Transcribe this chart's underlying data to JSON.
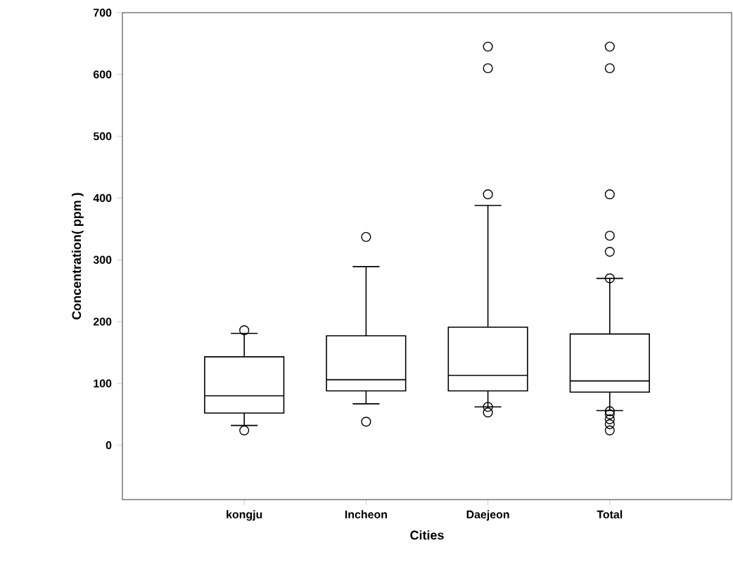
{
  "chart_data": {
    "type": "box",
    "xlabel": "Cities",
    "ylabel": "Concentration( ppm )",
    "categories": [
      "kongju",
      "Incheon",
      "Daejeon",
      "Total"
    ],
    "boxes": [
      {
        "low": 32,
        "q1": 52,
        "median": 80,
        "q3": 143,
        "high": 181,
        "outliers": [
          186,
          24
        ]
      },
      {
        "low": 67,
        "q1": 88,
        "median": 106,
        "q3": 177,
        "high": 289,
        "outliers": [
          337,
          38
        ]
      },
      {
        "low": 62,
        "q1": 88,
        "median": 113,
        "q3": 191,
        "high": 388,
        "outliers": [
          645,
          610,
          406,
          62,
          53
        ]
      },
      {
        "low": 56,
        "q1": 86,
        "median": 104,
        "q3": 180,
        "high": 270,
        "outliers": [
          645,
          610,
          406,
          339,
          313,
          270,
          55,
          50,
          42,
          34,
          24
        ]
      }
    ],
    "ylim": [
      -88,
      700
    ],
    "yticks": [
      0,
      100,
      200,
      300,
      400,
      500,
      600,
      700
    ],
    "marker": "circle"
  }
}
